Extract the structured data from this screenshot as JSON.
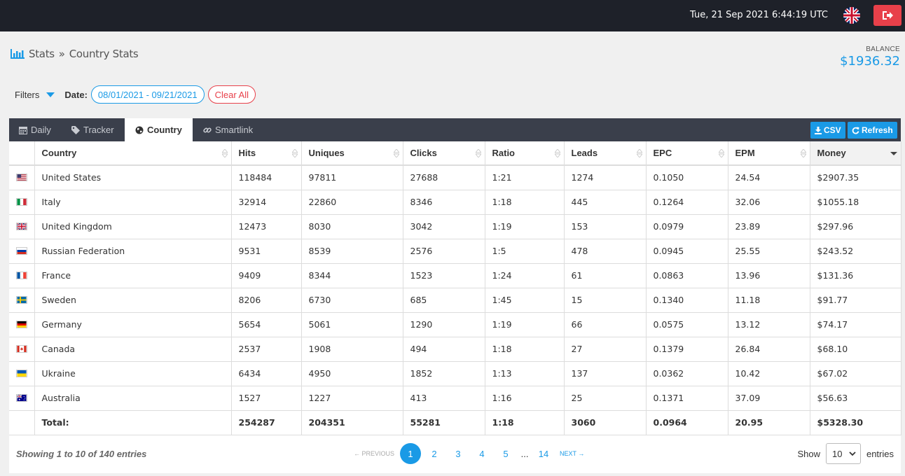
{
  "topbar": {
    "datetime": "Tue, 21 Sep 2021 6:44:19 UTC"
  },
  "breadcrumb": {
    "root": "Stats",
    "separator": "»",
    "current": "Country Stats"
  },
  "balance": {
    "label": "BALANCE",
    "value": "$1936.32"
  },
  "filters": {
    "label": "Filters",
    "date_label": "Date:",
    "date_range": "08/01/2021 - 09/21/2021",
    "clear_label": "Clear All"
  },
  "tabs": [
    {
      "label": "Daily",
      "icon": "calendar-icon"
    },
    {
      "label": "Tracker",
      "icon": "tag-icon"
    },
    {
      "label": "Country",
      "icon": "globe-icon"
    },
    {
      "label": "Smartlink",
      "icon": "link-icon"
    }
  ],
  "toolbar": {
    "csv_label": "CSV",
    "refresh_label": "Refresh"
  },
  "columns": [
    "Country",
    "Hits",
    "Uniques",
    "Clicks",
    "Ratio",
    "Leads",
    "EPC",
    "EPM",
    "Money"
  ],
  "rows": [
    {
      "flag": "us",
      "country": "United States",
      "hits": "118484",
      "uniques": "97811",
      "clicks": "27688",
      "ratio": "1:21",
      "leads": "1274",
      "epc": "0.1050",
      "epm": "24.54",
      "money": "$2907.35"
    },
    {
      "flag": "it",
      "country": "Italy",
      "hits": "32914",
      "uniques": "22860",
      "clicks": "8346",
      "ratio": "1:18",
      "leads": "445",
      "epc": "0.1264",
      "epm": "32.06",
      "money": "$1055.18"
    },
    {
      "flag": "gb",
      "country": "United Kingdom",
      "hits": "12473",
      "uniques": "8030",
      "clicks": "3042",
      "ratio": "1:19",
      "leads": "153",
      "epc": "0.0979",
      "epm": "23.89",
      "money": "$297.96"
    },
    {
      "flag": "ru",
      "country": "Russian Federation",
      "hits": "9531",
      "uniques": "8539",
      "clicks": "2576",
      "ratio": "1:5",
      "leads": "478",
      "epc": "0.0945",
      "epm": "25.55",
      "money": "$243.52"
    },
    {
      "flag": "fr",
      "country": "France",
      "hits": "9409",
      "uniques": "8344",
      "clicks": "1523",
      "ratio": "1:24",
      "leads": "61",
      "epc": "0.0863",
      "epm": "13.96",
      "money": "$131.36"
    },
    {
      "flag": "se",
      "country": "Sweden",
      "hits": "8206",
      "uniques": "6730",
      "clicks": "685",
      "ratio": "1:45",
      "leads": "15",
      "epc": "0.1340",
      "epm": "11.18",
      "money": "$91.77"
    },
    {
      "flag": "de",
      "country": "Germany",
      "hits": "5654",
      "uniques": "5061",
      "clicks": "1290",
      "ratio": "1:19",
      "leads": "66",
      "epc": "0.0575",
      "epm": "13.12",
      "money": "$74.17"
    },
    {
      "flag": "ca",
      "country": "Canada",
      "hits": "2537",
      "uniques": "1908",
      "clicks": "494",
      "ratio": "1:18",
      "leads": "27",
      "epc": "0.1379",
      "epm": "26.84",
      "money": "$68.10"
    },
    {
      "flag": "ua",
      "country": "Ukraine",
      "hits": "6434",
      "uniques": "4950",
      "clicks": "1852",
      "ratio": "1:13",
      "leads": "137",
      "epc": "0.0362",
      "epm": "10.42",
      "money": "$67.02"
    },
    {
      "flag": "au",
      "country": "Australia",
      "hits": "1527",
      "uniques": "1227",
      "clicks": "413",
      "ratio": "1:16",
      "leads": "25",
      "epc": "0.1371",
      "epm": "37.09",
      "money": "$56.63"
    }
  ],
  "totals": {
    "label": "Total:",
    "hits": "254287",
    "uniques": "204351",
    "clicks": "55281",
    "ratio": "1:18",
    "leads": "3060",
    "epc": "0.0964",
    "epm": "20.95",
    "money": "$5328.30"
  },
  "footer": {
    "info": "Showing 1 to 10 of 140 entries",
    "prev": "← PREVIOUS",
    "pages": [
      "1",
      "2",
      "3",
      "4",
      "5"
    ],
    "ellipsis": "...",
    "last": "14",
    "next": "NEXT →",
    "show_label": "Show",
    "page_size": "10",
    "entries_label": "entries"
  },
  "colors": {
    "accent": "#1a9ae6",
    "danger": "#e8404a",
    "topbar": "#1e2129",
    "tabbar": "#3a3f4b"
  }
}
